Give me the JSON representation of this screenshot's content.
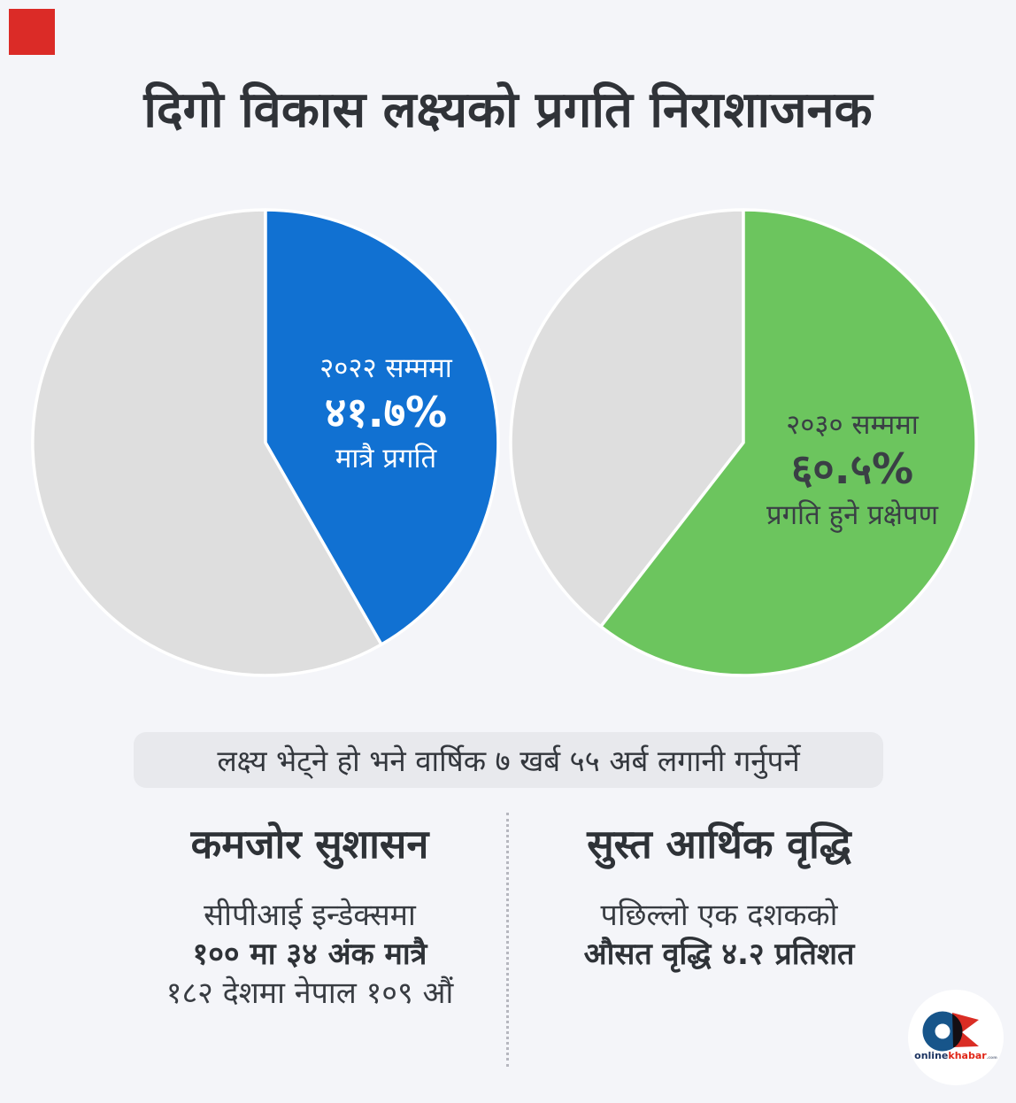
{
  "page": {
    "background": "#f4f5f9"
  },
  "corner_marker": {
    "color": "#db2b27"
  },
  "title": {
    "text": "दिगो विकास लक्ष्यको प्रगति निराशाजनक",
    "color": "#303338"
  },
  "chart_data": [
    {
      "type": "pie",
      "name": "progress-until-2022",
      "values": [
        41.7,
        58.3
      ],
      "slice_names": [
        "progress",
        "remaining"
      ],
      "colors": [
        "#1171d2",
        "#dedede"
      ],
      "start_angle_deg": 0,
      "direction": "clockwise",
      "legend": "none",
      "annotation": {
        "line1": "२०२२ सम्ममा",
        "value": "४१.७%",
        "line2": "मात्रै प्रगति"
      }
    },
    {
      "type": "pie",
      "name": "projection-until-2030",
      "values": [
        60.5,
        39.5
      ],
      "slice_names": [
        "projected-progress",
        "remaining"
      ],
      "colors": [
        "#6cc55e",
        "#dedede"
      ],
      "start_angle_deg": 0,
      "direction": "clockwise",
      "legend": "none",
      "annotation": {
        "line1": "२०३० सम्ममा",
        "value": "६०.५%",
        "line2": "प्रगति हुने प्रक्षेपण"
      }
    }
  ],
  "banner": {
    "text": "लक्ष्य भेट्ने हो भने वार्षिक ७ खर्ब ५५ अर्ब लगानी गर्नुपर्ने",
    "background": "#e8e9ed"
  },
  "columns": {
    "left": {
      "heading": "कमजोर सुशासन",
      "lines": [
        "सीपीआई इन्डेक्समा",
        "१०० मा ३४ अंक मात्रै",
        "१८२ देशमा नेपाल १०९ औं"
      ]
    },
    "right": {
      "heading": "सुस्त आर्थिक वृद्धि",
      "lines": [
        "पछिल्लो एक दशकको",
        "औसत वृद्धि  ४.२ प्रतिशत"
      ]
    }
  },
  "logo": {
    "online": "online",
    "khabar": "khabar",
    "suffix": ".com",
    "o_color": "#17558a",
    "k_color": "#da2d24",
    "online_color": "#1d3461",
    "khabar_color": "#e02617"
  }
}
